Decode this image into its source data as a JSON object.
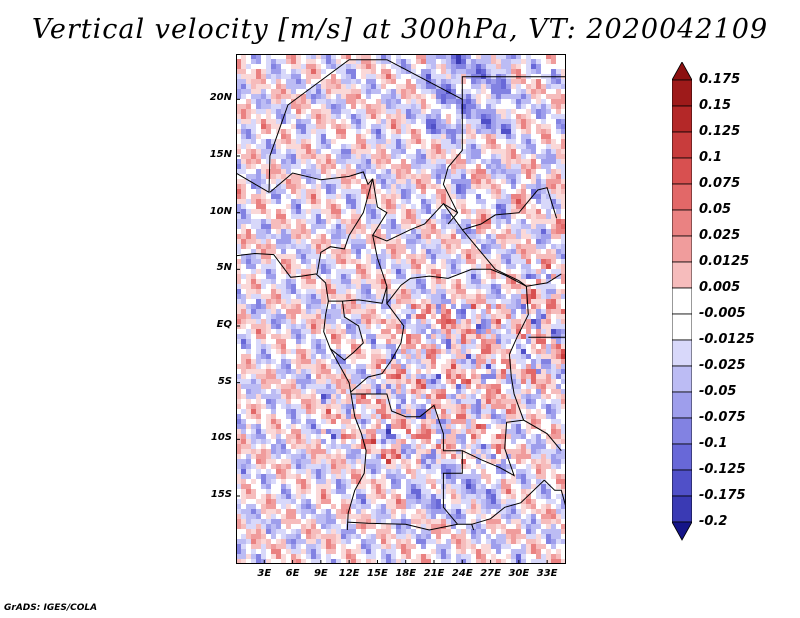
{
  "title": "Vertical velocity [m/s] at 300hPa, VT: 2020042109",
  "map": {
    "variable": "Vertical velocity",
    "units": "m/s",
    "level": "300hPa",
    "valid_time": "2020042109",
    "lon_range": [
      0,
      35
    ],
    "lat_range": [
      -21,
      24
    ],
    "lat_ticks": [
      {
        "value": 20,
        "label": "20N"
      },
      {
        "value": 15,
        "label": "15N"
      },
      {
        "value": 10,
        "label": "10N"
      },
      {
        "value": 5,
        "label": "5N"
      },
      {
        "value": 0,
        "label": "EQ"
      },
      {
        "value": -5,
        "label": "5S"
      },
      {
        "value": -10,
        "label": "10S"
      },
      {
        "value": -15,
        "label": "15S"
      }
    ],
    "lon_ticks": [
      {
        "value": 3,
        "label": "3E"
      },
      {
        "value": 6,
        "label": "6E"
      },
      {
        "value": 9,
        "label": "9E"
      },
      {
        "value": 12,
        "label": "12E"
      },
      {
        "value": 15,
        "label": "15E"
      },
      {
        "value": 18,
        "label": "18E"
      },
      {
        "value": 21,
        "label": "21E"
      },
      {
        "value": 24,
        "label": "24E"
      },
      {
        "value": 27,
        "label": "27E"
      },
      {
        "value": 30,
        "label": "30E"
      },
      {
        "value": 33,
        "label": "33E"
      }
    ]
  },
  "colorbar": {
    "levels": [
      {
        "label": "0.175",
        "color": "#9e1a1a"
      },
      {
        "label": "0.15",
        "color": "#b42828"
      },
      {
        "label": "0.125",
        "color": "#c83c3c"
      },
      {
        "label": "0.1",
        "color": "#d85050"
      },
      {
        "label": "0.075",
        "color": "#e26868"
      },
      {
        "label": "0.05",
        "color": "#ea8282"
      },
      {
        "label": "0.025",
        "color": "#f09c9c"
      },
      {
        "label": "0.0125",
        "color": "#f6bcbc"
      },
      {
        "label": "0.005",
        "color": "#fad8d8"
      },
      {
        "label": "-0.005",
        "color": "#ffffff"
      },
      {
        "label": "-0.0125",
        "color": "#d8d8fa"
      },
      {
        "label": "-0.025",
        "color": "#bcbcf4"
      },
      {
        "label": "-0.05",
        "color": "#9e9eec"
      },
      {
        "label": "-0.075",
        "color": "#8282e2"
      },
      {
        "label": "-0.1",
        "color": "#6868d8"
      },
      {
        "label": "-0.125",
        "color": "#5050c8"
      },
      {
        "label": "-0.175",
        "color": "#3a3ab4"
      },
      {
        "label": "-0.2",
        "color": "#26269e"
      }
    ],
    "top_color": "#8c1010",
    "bottom_color": "#141488",
    "neutral_color": "#ffffff"
  },
  "credit": "GrADS: IGES/COLA"
}
